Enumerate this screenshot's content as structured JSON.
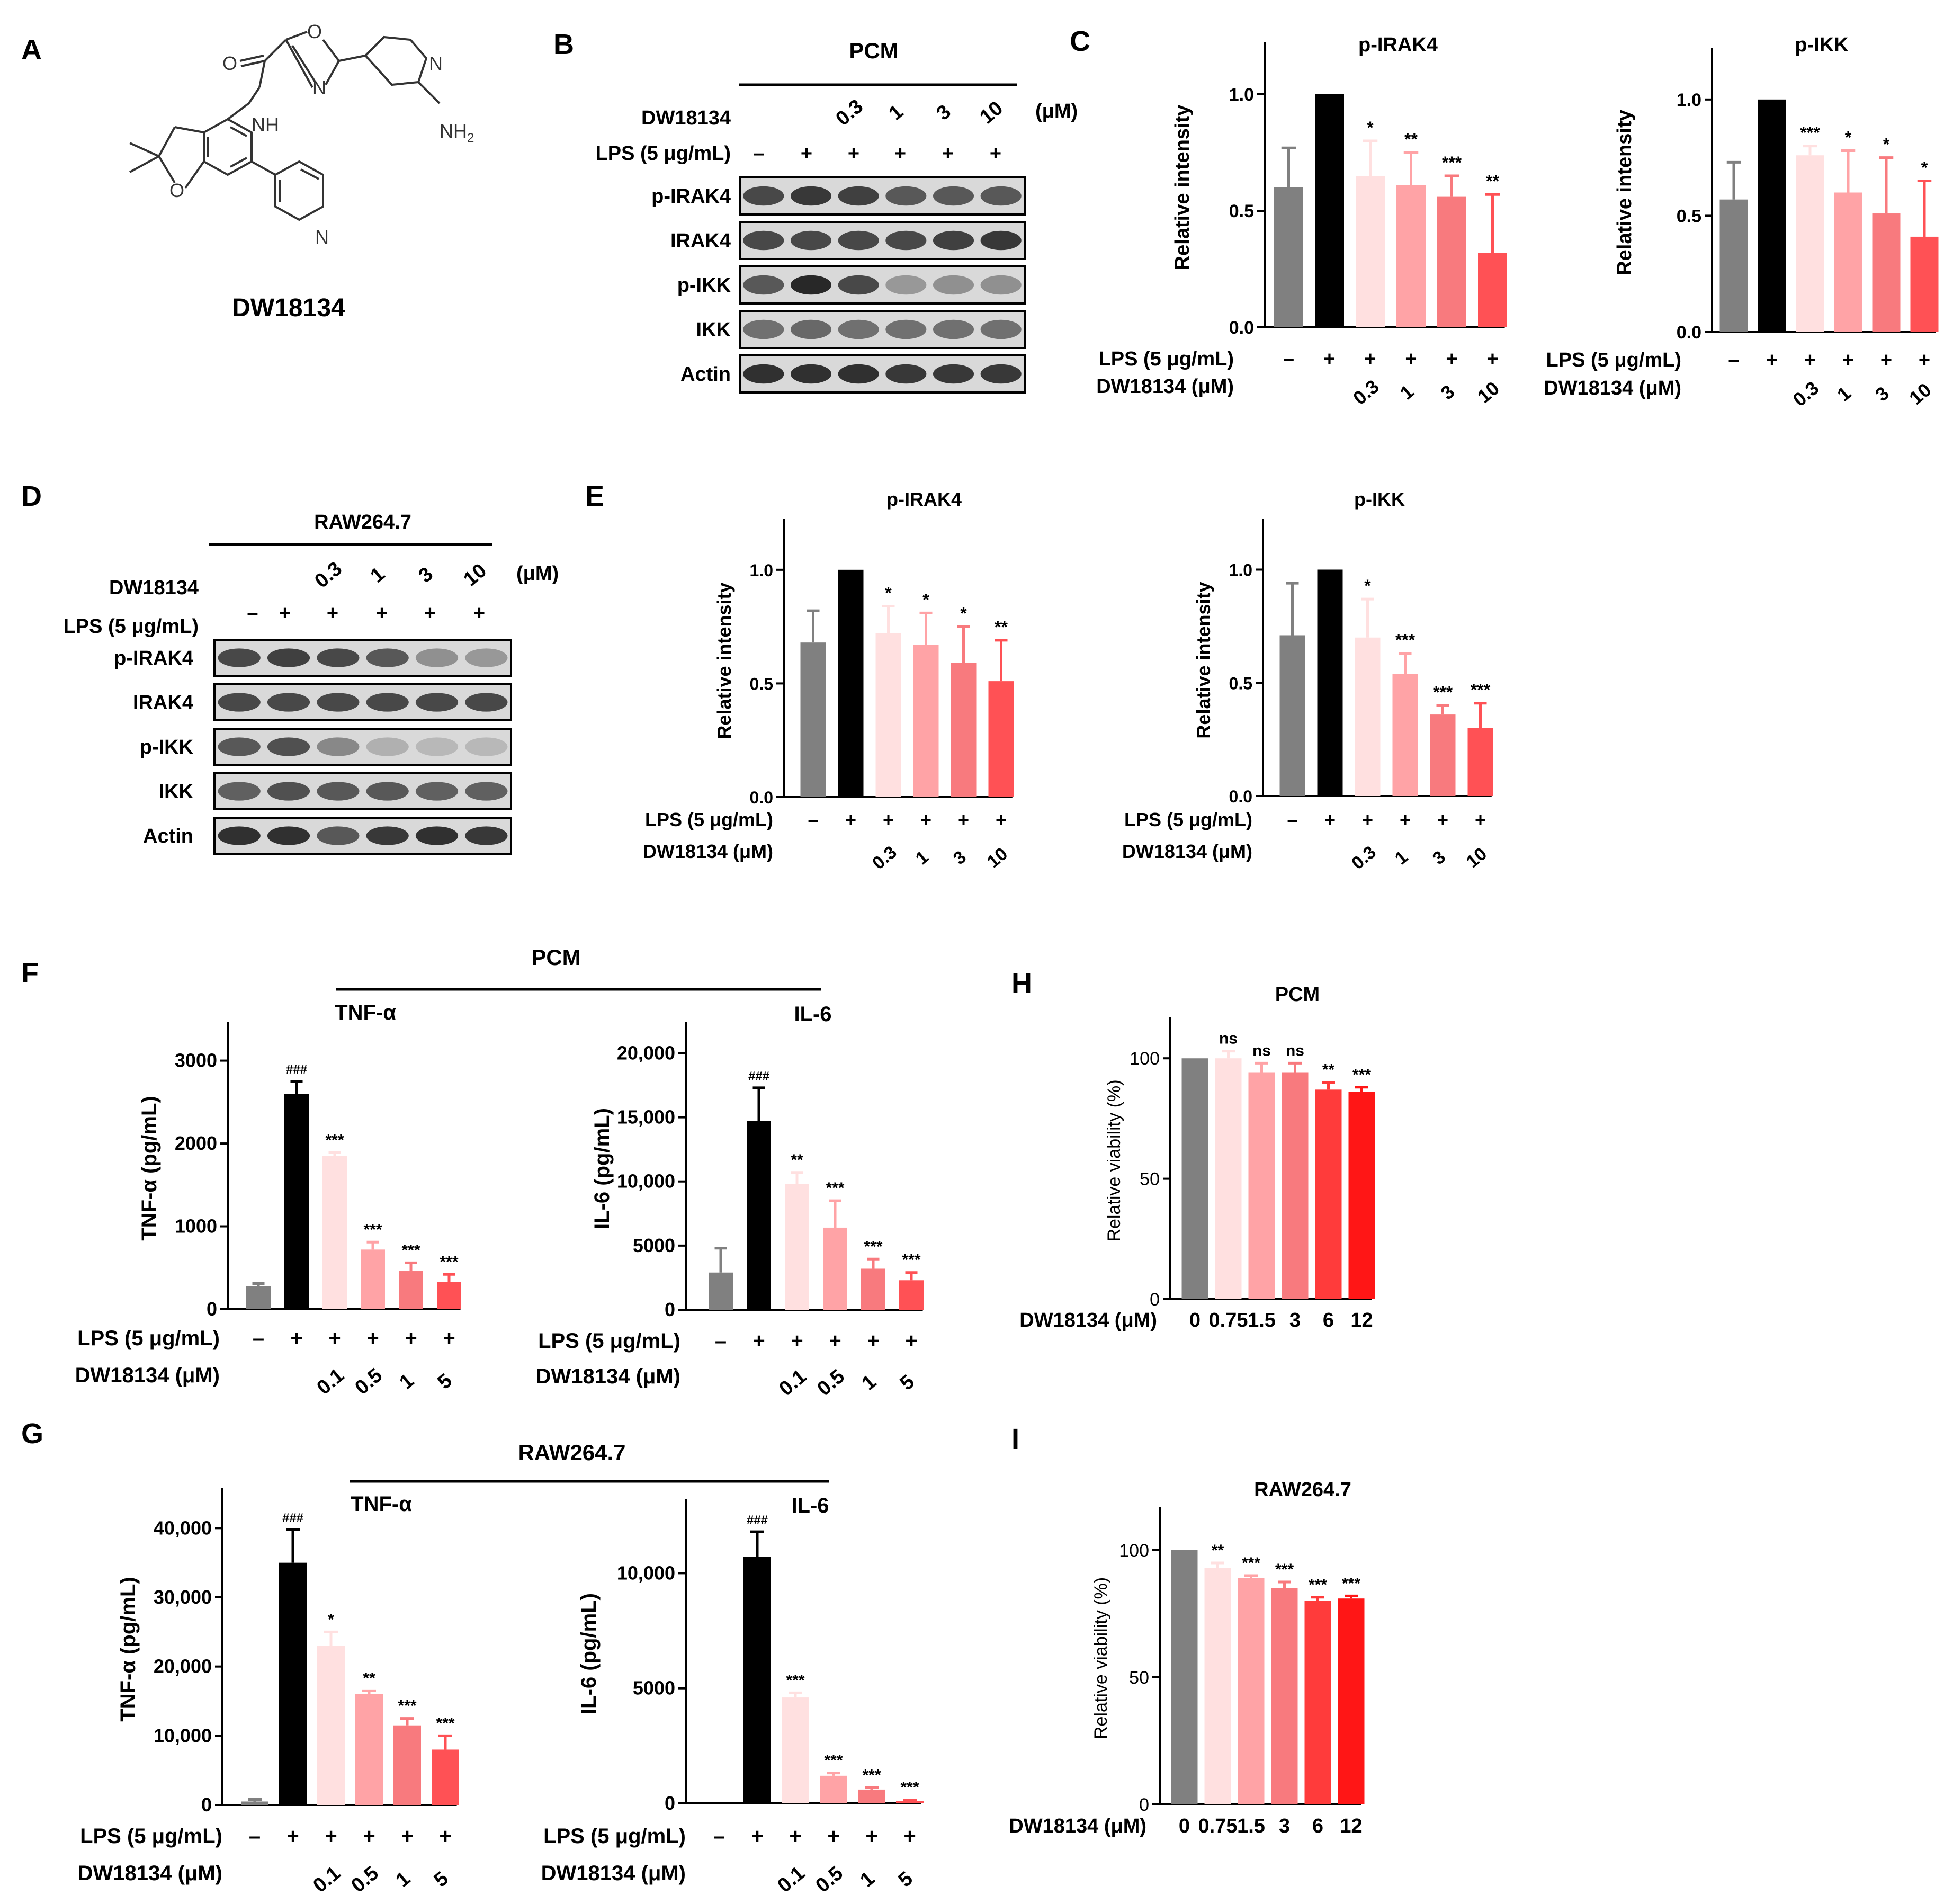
{
  "colors": {
    "ctrl": "#808080",
    "lps": "#000000",
    "shadesA": [
      "#FFE0E0",
      "#FFA3A6",
      "#F87A7E",
      "#FF5155"
    ],
    "shadesB": [
      "#FFE0E0",
      "#FFA3A6",
      "#F87A7E",
      "#FF5155",
      "#FF2A2A",
      "#FF1616"
    ]
  },
  "panels": {
    "A": {
      "letter": "A",
      "compound_label": "DW18134",
      "atoms": {
        "O1": "O",
        "O2": "O",
        "N1": "N",
        "NH": "NH",
        "NH2": "NH",
        "NH2_sub": "2",
        "O3": "O",
        "N_py": "N",
        "N_py2": "N"
      }
    },
    "B": {
      "letter": "B",
      "cell": "PCM",
      "drug_label": "DW18134",
      "unit": "(μM)",
      "lps_label": "LPS (5 μg/mL)",
      "doses": [
        "0.3",
        "1",
        "3",
        "10"
      ],
      "lps_signs": [
        "–",
        "+",
        "+",
        "+",
        "+",
        "+"
      ],
      "bands": [
        "p-IRAK4",
        "IRAK4",
        "p-IKK",
        "IKK",
        "Actin"
      ]
    },
    "C": {
      "letter": "C"
    },
    "D": {
      "letter": "D",
      "cell": "RAW264.7",
      "drug_label": "DW18134",
      "unit": "(μM)",
      "lps_label": "LPS (5 μg/mL)",
      "doses": [
        "0.3",
        "1",
        "3",
        "10"
      ],
      "lps_signs": [
        "–",
        "+",
        "+",
        "+",
        "+",
        "+"
      ],
      "bands": [
        "p-IRAK4",
        "IRAK4",
        "p-IKK",
        "IKK",
        "Actin"
      ]
    },
    "E": {
      "letter": "E"
    },
    "F": {
      "letter": "F",
      "cell": "PCM"
    },
    "G": {
      "letter": "G",
      "cell": "RAW264.7"
    },
    "H": {
      "letter": "H"
    },
    "I": {
      "letter": "I"
    }
  },
  "chart_data": [
    {
      "id": "C1",
      "type": "bar",
      "title": "p-IRAK4",
      "ylabel": "Relative intensity",
      "ylim": [
        0,
        1.2
      ],
      "yticks": [
        0.0,
        0.5,
        1.0
      ],
      "tick_labels": [
        "0.0",
        "0.5",
        "1.0"
      ],
      "values": [
        0.6,
        1.0,
        0.65,
        0.61,
        0.56,
        0.32
      ],
      "errors": [
        0.17,
        0,
        0.15,
        0.14,
        0.09,
        0.25
      ],
      "sig": [
        "",
        "",
        "*",
        "**",
        "***",
        "**"
      ],
      "row1_label": "LPS (5 μg/mL)",
      "row1": [
        "–",
        "+",
        "+",
        "+",
        "+",
        "+"
      ],
      "row2_label": "DW18134 (μM)",
      "row2": [
        "",
        "",
        "0.3",
        "1",
        "3",
        "10"
      ]
    },
    {
      "id": "C2",
      "type": "bar",
      "title": "p-IKK",
      "ylabel": "Relative intensity",
      "ylim": [
        0,
        1.2
      ],
      "yticks": [
        0.0,
        0.5,
        1.0
      ],
      "tick_labels": [
        "0.0",
        "0.5",
        "1.0"
      ],
      "values": [
        0.57,
        1.0,
        0.76,
        0.6,
        0.51,
        0.41
      ],
      "errors": [
        0.16,
        0,
        0.04,
        0.18,
        0.24,
        0.24
      ],
      "sig": [
        "",
        "",
        "***",
        "*",
        "*",
        "*"
      ],
      "row1_label": "LPS (5 μg/mL)",
      "row1": [
        "–",
        "+",
        "+",
        "+",
        "+",
        "+"
      ],
      "row2_label": "DW18134 (μM)",
      "row2": [
        "",
        "",
        "0.3",
        "1",
        "3",
        "10"
      ]
    },
    {
      "id": "E1",
      "type": "bar",
      "title": "p-IRAK4",
      "ylabel": "Relative intensity",
      "ylim": [
        0,
        1.2
      ],
      "yticks": [
        0.0,
        0.5,
        1.0
      ],
      "tick_labels": [
        "0.0",
        "0.5",
        "1.0"
      ],
      "values": [
        0.68,
        1.0,
        0.72,
        0.67,
        0.59,
        0.51
      ],
      "errors": [
        0.14,
        0,
        0.12,
        0.14,
        0.16,
        0.18
      ],
      "sig": [
        "",
        "",
        "*",
        "*",
        "*",
        "**"
      ],
      "row1_label": "LPS (5 μg/mL)",
      "row1": [
        "–",
        "+",
        "+",
        "+",
        "+",
        "+"
      ],
      "row2_label": "DW18134 (μM)",
      "row2": [
        "",
        "",
        "0.3",
        "1",
        "3",
        "10"
      ]
    },
    {
      "id": "E2",
      "type": "bar",
      "title": "p-IKK",
      "ylabel": "Relative intensity",
      "ylim": [
        0,
        1.2
      ],
      "yticks": [
        0.0,
        0.5,
        1.0
      ],
      "tick_labels": [
        "0.0",
        "0.5",
        "1.0"
      ],
      "values": [
        0.71,
        1.0,
        0.7,
        0.54,
        0.36,
        0.3
      ],
      "errors": [
        0.23,
        0,
        0.17,
        0.09,
        0.04,
        0.11
      ],
      "sig": [
        "",
        "",
        "*",
        "***",
        "***",
        "***"
      ],
      "row1_label": "LPS (5 μg/mL)",
      "row1": [
        "–",
        "+",
        "+",
        "+",
        "+",
        "+"
      ],
      "row2_label": "DW18134 (μM)",
      "row2": [
        "",
        "",
        "0.3",
        "1",
        "3",
        "10"
      ]
    },
    {
      "id": "F1",
      "type": "bar",
      "title": "TNF-α",
      "ylabel": "TNF-α (pg/mL)",
      "ylim": [
        0,
        3400
      ],
      "yticks": [
        0,
        1000,
        2000,
        3000
      ],
      "tick_labels": [
        "0",
        "1000",
        "2000",
        "3000"
      ],
      "values": [
        280,
        2600,
        1850,
        720,
        460,
        330
      ],
      "errors": [
        30,
        150,
        40,
        90,
        100,
        90
      ],
      "sig": [
        "",
        "###",
        "***",
        "***",
        "***",
        "***"
      ],
      "row1_label": "LPS (5 μg/mL)",
      "row1": [
        "–",
        "+",
        "+",
        "+",
        "+",
        "+"
      ],
      "row2_label": "DW18134 (μM)",
      "row2": [
        "",
        "",
        "0.1",
        "0.5",
        "1",
        "5"
      ]
    },
    {
      "id": "F2",
      "type": "bar",
      "title": "IL-6",
      "ylabel": "IL-6 (pg/mL)",
      "ylim": [
        0,
        22000
      ],
      "yticks": [
        0,
        5000,
        10000,
        15000,
        20000
      ],
      "tick_labels": [
        "0",
        "5000",
        "10,000",
        "15,000",
        "20,000"
      ],
      "values": [
        2900,
        14700,
        9800,
        6400,
        3200,
        2300
      ],
      "errors": [
        1900,
        2600,
        900,
        2100,
        750,
        600
      ],
      "sig": [
        "",
        "###",
        "**",
        "***",
        "***",
        "***"
      ],
      "row1_label": "LPS (5 μg/mL)",
      "row1": [
        "–",
        "+",
        "+",
        "+",
        "+",
        "+"
      ],
      "row2_label": "DW18134 (μM)",
      "row2": [
        "",
        "",
        "0.1",
        "0.5",
        "1",
        "5"
      ]
    },
    {
      "id": "G1",
      "type": "bar",
      "title": "TNF-α",
      "ylabel": "TNF-α (pg/mL)",
      "ylim": [
        0,
        45000
      ],
      "yticks": [
        0,
        10000,
        20000,
        30000,
        40000
      ],
      "tick_labels": [
        "0",
        "10,000",
        "20,000",
        "30,000",
        "40,000"
      ],
      "values": [
        500,
        35000,
        23000,
        16000,
        11500,
        8000
      ],
      "errors": [
        300,
        4800,
        2000,
        500,
        1000,
        2000
      ],
      "sig": [
        "",
        "###",
        "*",
        "**",
        "***",
        "***"
      ],
      "row1_label": "LPS (5 μg/mL)",
      "row1": [
        "–",
        "+",
        "+",
        "+",
        "+",
        "+"
      ],
      "row2_label": "DW18134 (μM)",
      "row2": [
        "",
        "",
        "0.1",
        "0.5",
        "1",
        "5"
      ]
    },
    {
      "id": "G2",
      "type": "bar",
      "title": "IL-6",
      "ylabel": "IL-6 (pg/mL)",
      "ylim": [
        0,
        13000
      ],
      "yticks": [
        0,
        5000,
        10000
      ],
      "tick_labels": [
        "0",
        "5000",
        "10,000"
      ],
      "values": [
        0,
        10700,
        4600,
        1200,
        600,
        100
      ],
      "errors": [
        0,
        1100,
        200,
        120,
        80,
        50
      ],
      "sig": [
        "",
        "###",
        "***",
        "***",
        "***",
        "***"
      ],
      "row1_label": "LPS (5 μg/mL)",
      "row1": [
        "–",
        "+",
        "+",
        "+",
        "+",
        "+"
      ],
      "row2_label": "DW18134 (μM)",
      "row2": [
        "",
        "",
        "0.1",
        "0.5",
        "1",
        "5"
      ]
    },
    {
      "id": "H",
      "type": "bar",
      "title": "PCM",
      "ylabel": "Relative viability (%)",
      "ylim": [
        0,
        115
      ],
      "yticks": [
        0,
        50,
        100
      ],
      "tick_labels": [
        "0",
        "50",
        "100"
      ],
      "values": [
        100,
        100,
        94,
        94,
        87,
        86
      ],
      "errors": [
        0,
        3,
        4,
        4,
        3,
        2
      ],
      "sig": [
        "",
        "ns",
        "ns",
        "ns",
        "**",
        "***"
      ],
      "xlabel": "DW18134 (μM)",
      "categories": [
        "0",
        "0.75",
        "1.5",
        "3",
        "6",
        "12"
      ]
    },
    {
      "id": "I",
      "type": "bar",
      "title": "RAW264.7",
      "ylabel": "Relative viability (%)",
      "ylim": [
        0,
        115
      ],
      "yticks": [
        0,
        50,
        100
      ],
      "tick_labels": [
        "0",
        "50",
        "100"
      ],
      "values": [
        100,
        93,
        89,
        85,
        80,
        81
      ],
      "errors": [
        0,
        2,
        1,
        2.5,
        1.5,
        1
      ],
      "sig": [
        "",
        "**",
        "***",
        "***",
        "***",
        "***"
      ],
      "xlabel": "DW18134 (μM)",
      "categories": [
        "0",
        "0.75",
        "1.5",
        "3",
        "6",
        "12"
      ]
    }
  ]
}
